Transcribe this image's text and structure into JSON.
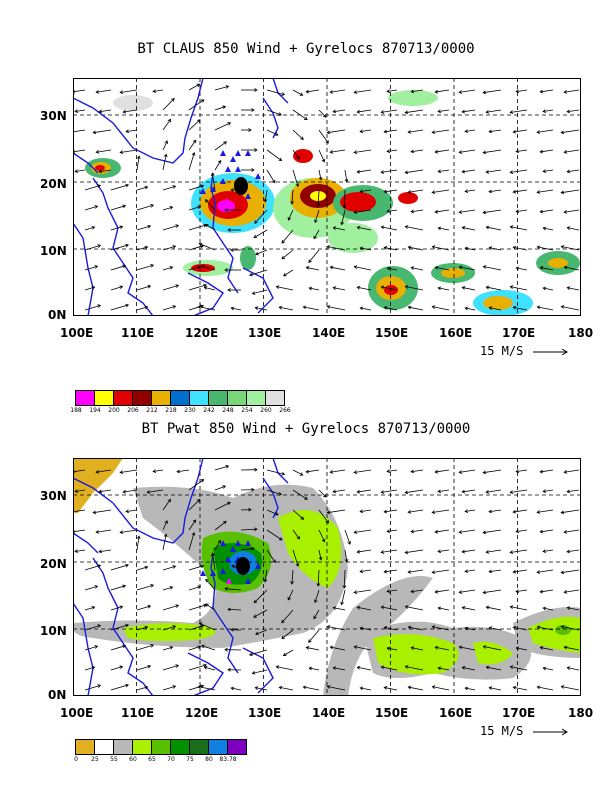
{
  "top": {
    "title": "BT CLAUS 850 Wind + Gyrelocs 870713/0000",
    "lat_labels": [
      "30N",
      "20N",
      "10N",
      "0N"
    ],
    "lon_labels": [
      "100E",
      "110E",
      "120E",
      "130E",
      "140E",
      "150E",
      "160E",
      "170E",
      "180"
    ],
    "scale_label": "15 M/S",
    "colorbar": {
      "colors": [
        "#ff00ff",
        "#ffff00",
        "#e00000",
        "#900000",
        "#e8b000",
        "#0070d0",
        "#40e0ff",
        "#48b870",
        "#78d878",
        "#a0f0a0",
        "#e0e0e0"
      ],
      "labels": [
        "188",
        "194",
        "200",
        "206",
        "212",
        "218",
        "230",
        "242",
        "248",
        "254",
        "260",
        "266"
      ]
    }
  },
  "bottom": {
    "title": "BT Pwat 850 Wind + Gyrelocs 870713/0000",
    "lat_labels": [
      "30N",
      "20N",
      "10N",
      "0N"
    ],
    "lon_labels": [
      "100E",
      "110E",
      "120E",
      "130E",
      "140E",
      "150E",
      "160E",
      "170E",
      "180"
    ],
    "scale_label": "15 M/S",
    "colorbar": {
      "colors": [
        "#e0b020",
        "#ffffff",
        "#b8b8b8",
        "#a8f000",
        "#58c000",
        "#009000",
        "#1a6e1a",
        "#1080e0",
        "#8000c0"
      ],
      "labels": [
        "0",
        "25",
        "55",
        "60",
        "65",
        "70",
        "75",
        "80",
        "83.78"
      ]
    }
  },
  "colors": {
    "coast": "#1a1ae0",
    "grid": "#000000",
    "cyclone": "#000000",
    "gyre_marker": "#1a1ae0",
    "center_marker": "#ff00ff"
  }
}
